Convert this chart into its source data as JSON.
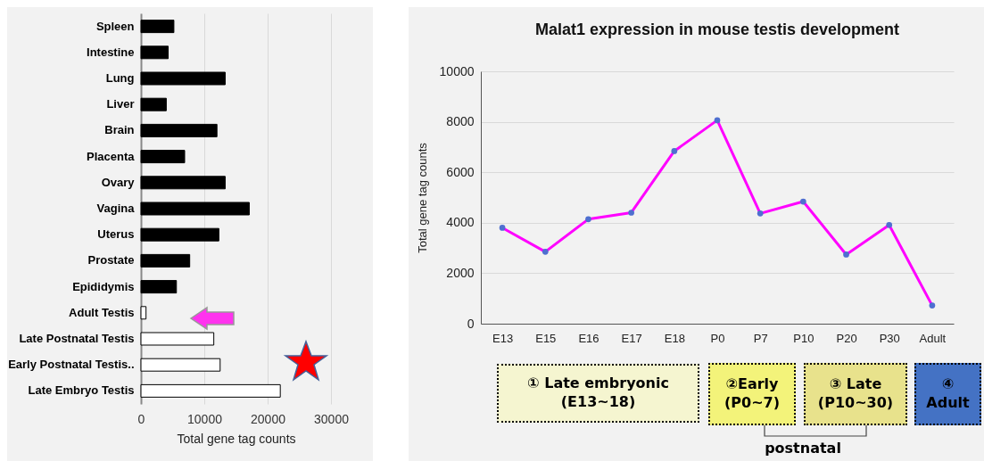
{
  "chart_data": [
    {
      "type": "bar",
      "orientation": "horizontal",
      "xlabel": "Total gene tag counts",
      "categories": [
        "Spleen",
        "Intestine",
        "Lung",
        "Liver",
        "Brain",
        "Placenta",
        "Ovary",
        "Vagina",
        "Uterus",
        "Prostate",
        "Epididymis",
        "Adult Testis",
        "Late Postnatal Testis",
        "Early Postnatal Testis..",
        "Late Embryo Testis"
      ],
      "values": [
        5200,
        4300,
        13300,
        4000,
        12000,
        6900,
        13300,
        17100,
        12300,
        7700,
        5600,
        800,
        11500,
        12500,
        22000
      ],
      "colors": [
        "#000000",
        "#000000",
        "#000000",
        "#000000",
        "#000000",
        "#000000",
        "#000000",
        "#000000",
        "#000000",
        "#000000",
        "#000000",
        "#ffffff",
        "#ffffff",
        "#ffffff",
        "#ffffff"
      ],
      "xlim": [
        0,
        30000
      ],
      "xticks": [
        0,
        10000,
        20000,
        30000
      ],
      "grid": "x",
      "legend": false
    },
    {
      "type": "line",
      "title": "Malat1 expression in mouse testis development",
      "ylabel": "Total gene tag counts",
      "categories": [
        "E13",
        "E15",
        "E16",
        "E17",
        "E18",
        "P0",
        "P7",
        "P10",
        "P20",
        "P30",
        "Adult"
      ],
      "series": [
        {
          "color": "#ff00ff",
          "values": [
            3800,
            2850,
            4140,
            4400,
            6840,
            8060,
            4370,
            4840,
            2740,
            3910,
            720
          ]
        }
      ],
      "ylim": [
        0,
        10000
      ],
      "yticks": [
        0,
        2000,
        4000,
        6000,
        8000,
        10000
      ],
      "grid": "y",
      "marker": "circle",
      "legend": false,
      "annotations": [
        "① Late embryonic (E13~18)",
        "②Early (P0~7)",
        "③ Late (P10~30)",
        "④ Adult",
        "postnatal"
      ]
    }
  ]
}
